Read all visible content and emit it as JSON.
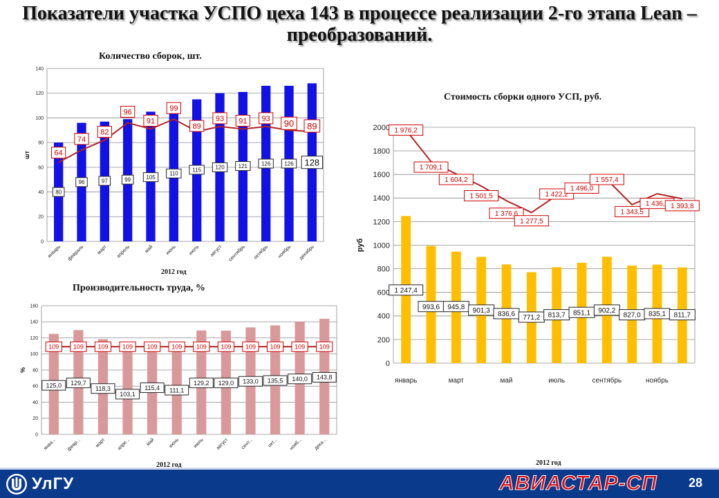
{
  "slide": {
    "title": "Показатели участка УСПО цеха 143 в процессе реализации 2-го этапа Lean – преобразований.",
    "page_number": "28",
    "footer_left_text": "УлГУ",
    "footer_brand": "АВИАСТАР-СП"
  },
  "colors": {
    "assemblies_bar": "#1212e6",
    "productivity_bar": "#d9999a",
    "cost_bar": "#ffbf00",
    "line_red": "#b22222",
    "label_red": "#cc0000",
    "footer_blue": "#0a3a8c",
    "brand_red": "#d8121a"
  },
  "chart_data": [
    {
      "id": "assemblies",
      "type": "bar",
      "title": "Количество сборок, шт.",
      "xlabel": "2012 год",
      "ylabel": "шт",
      "ylim": [
        0,
        140
      ],
      "yticks": [
        0,
        20,
        40,
        60,
        80,
        100,
        120,
        140
      ],
      "grid": true,
      "categories": [
        "январь",
        "февраль",
        "март",
        "апрель",
        "май",
        "июнь",
        "июль",
        "август",
        "сентябрь",
        "октябрь",
        "ноябрь",
        "декабрь"
      ],
      "bar_values": [
        80,
        96,
        97,
        99,
        105,
        110,
        115,
        120,
        121,
        126,
        126,
        128
      ],
      "bar_labels": [
        "80",
        "96",
        "97",
        "99",
        "105",
        "110",
        "115",
        "120",
        "121",
        "126",
        "126",
        "128"
      ],
      "line_values": [
        64,
        74,
        82,
        96,
        91,
        99,
        89,
        93,
        91,
        93,
        90,
        89
      ],
      "line_labels": [
        "64",
        "74",
        "82",
        "96",
        "91",
        "99",
        "89",
        "93",
        "91",
        "93",
        "90",
        "89"
      ]
    },
    {
      "id": "productivity",
      "type": "bar",
      "title": "Производительность труда, %",
      "xlabel": "2012 год",
      "ylabel": "%",
      "ylim": [
        0,
        160
      ],
      "yticks": [
        0,
        20,
        40,
        60,
        80,
        100,
        120,
        140,
        160
      ],
      "grid": true,
      "categories": [
        "янва...",
        "февр...",
        "март",
        "апре...",
        "май",
        "июнь",
        "июль",
        "август",
        "сент...",
        "окт...",
        "нояб...",
        "дека..."
      ],
      "bar_values": [
        125.0,
        129.7,
        118.3,
        103.1,
        115.4,
        111.1,
        129.2,
        129.0,
        133.0,
        135.5,
        140.0,
        143.8
      ],
      "bar_labels": [
        "125,0",
        "129,7",
        "118,3",
        "103,1",
        "115,4",
        "111,1",
        "129,2",
        "129,0",
        "133,0",
        "135,5",
        "140,0",
        "143,8"
      ],
      "line_values": [
        109,
        109,
        109,
        109,
        109,
        109,
        109,
        109,
        109,
        109,
        109,
        109
      ],
      "line_labels": [
        "109",
        "109",
        "109",
        "109",
        "109",
        "109",
        "109",
        "109",
        "109",
        "109",
        "109",
        "109"
      ]
    },
    {
      "id": "cost",
      "type": "bar",
      "title": "Стоимость сборки одного УСП, руб.",
      "xlabel": "2012 год",
      "ylabel": "руб",
      "ylim": [
        0,
        2000
      ],
      "yticks": [
        0,
        200,
        400,
        600,
        800,
        1000,
        1200,
        1400,
        1600,
        1800,
        2000
      ],
      "grid": true,
      "categories": [
        "январь",
        "",
        "март",
        "",
        "май",
        "",
        "июль",
        "",
        "сентябрь",
        "",
        "ноябрь",
        ""
      ],
      "bar_values": [
        1247.4,
        993.6,
        945.8,
        901.3,
        836.6,
        771.2,
        813.7,
        851.1,
        902.2,
        827.0,
        835.1,
        811.7
      ],
      "bar_labels": [
        "1 247,4",
        "993,6",
        "945,8",
        "901,3",
        "836,6",
        "771,2",
        "813,7",
        "851,1",
        "902,2",
        "827,0",
        "835,1",
        "811,7"
      ],
      "line_values": [
        1976.2,
        1709.1,
        1604.2,
        1501.5,
        1376.6,
        1277.5,
        1422.2,
        1496.0,
        1557.4,
        1343.5,
        1436.1,
        1393.8
      ],
      "line_labels": [
        "1 976,2",
        "1 709,1",
        "1 604,2",
        "1 501,5",
        "1 376,6",
        "1 277,5",
        "1 422,2",
        "1 496,0",
        "1 557,4",
        "1 343,5",
        "1 436,1",
        "1 393,8"
      ]
    }
  ]
}
